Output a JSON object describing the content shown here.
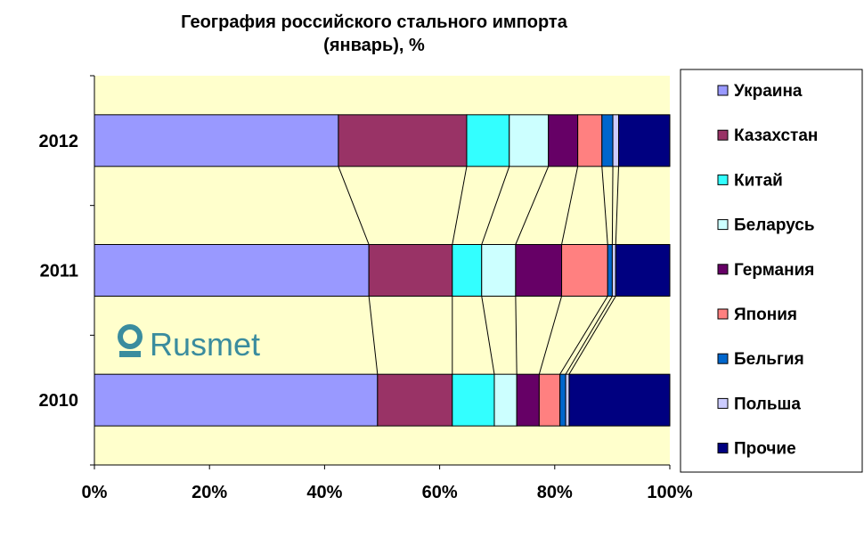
{
  "chart_data": {
    "type": "bar",
    "orientation": "horizontal",
    "stacked": "percent",
    "title": "География российского стального импорта (январь), %",
    "title_lines": [
      "География российского стального импорта",
      "(январь), %"
    ],
    "categories": [
      "2012",
      "2011",
      "2010"
    ],
    "xlim": [
      0,
      100
    ],
    "x_ticks": [
      "0%",
      "20%",
      "40%",
      "60%",
      "80%",
      "100%"
    ],
    "grid": false,
    "legend_position": "right",
    "plot_background": "#FFFFCC",
    "series_lines": true,
    "series": [
      {
        "name": "Украина",
        "color": "#9999FF",
        "values": [
          42.4,
          47.7,
          49.2
        ]
      },
      {
        "name": "Казахстан",
        "color": "#993366",
        "values": [
          22.3,
          14.5,
          13.0
        ]
      },
      {
        "name": "Китай",
        "color": "#33FFFF",
        "values": [
          7.4,
          5.1,
          7.3
        ]
      },
      {
        "name": "Беларусь",
        "color": "#CCFFFF",
        "values": [
          6.8,
          5.9,
          3.9
        ]
      },
      {
        "name": "Германия",
        "color": "#660066",
        "values": [
          5.1,
          8.0,
          3.9
        ]
      },
      {
        "name": "Япония",
        "color": "#FF8080",
        "values": [
          4.2,
          8.0,
          3.6
        ]
      },
      {
        "name": "Бельгия",
        "color": "#0066CC",
        "values": [
          1.9,
          0.8,
          1.0
        ]
      },
      {
        "name": "Польша",
        "color": "#CCCCFF",
        "values": [
          1.0,
          0.6,
          0.6
        ]
      },
      {
        "name": "Прочие",
        "color": "#000080",
        "values": [
          8.9,
          9.4,
          17.5
        ]
      }
    ]
  },
  "watermark": {
    "text": "Rusmet",
    "color": "#3A8C9E"
  }
}
